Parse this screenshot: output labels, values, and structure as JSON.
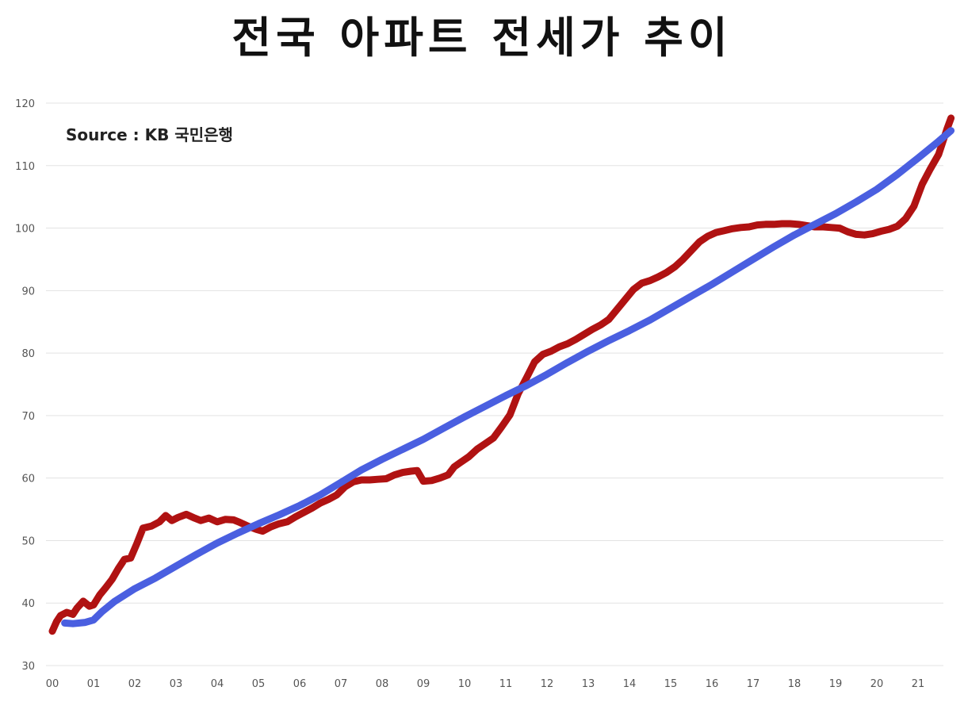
{
  "chart_data": {
    "type": "line",
    "title": "전국 아파트 전세가 추이",
    "annotation": "Source :  KB 국민은행",
    "xlabel": "",
    "ylabel": "",
    "ylim": [
      30,
      120
    ],
    "yticks": [
      30,
      40,
      50,
      60,
      70,
      80,
      90,
      100,
      110,
      120
    ],
    "xticks": [
      "00",
      "01",
      "02",
      "03",
      "04",
      "05",
      "06",
      "07",
      "08",
      "09",
      "10",
      "11",
      "12",
      "13",
      "14",
      "15",
      "16",
      "17",
      "18",
      "19",
      "20",
      "21"
    ],
    "xlim": [
      0,
      21.8
    ],
    "grid": true,
    "legend": "none",
    "series": [
      {
        "color": "#b01212",
        "x": [
          0.0,
          0.1,
          0.2,
          0.35,
          0.5,
          0.6,
          0.75,
          0.9,
          1.0,
          1.15,
          1.3,
          1.45,
          1.6,
          1.75,
          1.9,
          2.05,
          2.2,
          2.4,
          2.6,
          2.75,
          2.9,
          3.05,
          3.25,
          3.45,
          3.6,
          3.8,
          4.0,
          4.2,
          4.4,
          4.55,
          4.75,
          4.95,
          5.1,
          5.3,
          5.5,
          5.7,
          5.9,
          6.1,
          6.3,
          6.5,
          6.7,
          6.9,
          7.1,
          7.3,
          7.5,
          7.7,
          7.9,
          8.1,
          8.3,
          8.5,
          8.7,
          8.85,
          9.0,
          9.2,
          9.4,
          9.6,
          9.75,
          9.9,
          10.1,
          10.3,
          10.5,
          10.7,
          10.9,
          11.1,
          11.3,
          11.5,
          11.7,
          11.9,
          12.1,
          12.3,
          12.5,
          12.7,
          12.9,
          13.1,
          13.3,
          13.5,
          13.7,
          13.9,
          14.1,
          14.3,
          14.5,
          14.7,
          14.9,
          15.1,
          15.3,
          15.5,
          15.7,
          15.9,
          16.1,
          16.3,
          16.5,
          16.7,
          16.9,
          17.1,
          17.3,
          17.5,
          17.7,
          17.9,
          18.1,
          18.3,
          18.5,
          18.7,
          18.9,
          19.1,
          19.3,
          19.5,
          19.7,
          19.9,
          20.1,
          20.3,
          20.5,
          20.7,
          20.9,
          21.1,
          21.3,
          21.5,
          21.7,
          21.8
        ],
        "values": [
          35.5,
          37.0,
          38.0,
          38.5,
          38.2,
          39.2,
          40.3,
          39.5,
          39.7,
          41.3,
          42.5,
          43.8,
          45.5,
          47.0,
          47.2,
          49.5,
          52.0,
          52.3,
          53.0,
          54.0,
          53.2,
          53.7,
          54.2,
          53.6,
          53.2,
          53.6,
          53.0,
          53.4,
          53.3,
          52.9,
          52.3,
          51.8,
          51.5,
          52.2,
          52.7,
          53.0,
          53.8,
          54.5,
          55.2,
          56.0,
          56.6,
          57.3,
          58.6,
          59.4,
          59.7,
          59.7,
          59.8,
          59.9,
          60.5,
          60.9,
          61.1,
          61.2,
          59.5,
          59.6,
          60.0,
          60.5,
          61.8,
          62.5,
          63.4,
          64.6,
          65.5,
          66.4,
          68.2,
          70.1,
          73.5,
          76.0,
          78.6,
          79.8,
          80.3,
          81.0,
          81.5,
          82.2,
          83.0,
          83.8,
          84.5,
          85.4,
          87.0,
          88.6,
          90.2,
          91.2,
          91.6,
          92.2,
          92.9,
          93.8,
          95.0,
          96.4,
          97.8,
          98.7,
          99.3,
          99.6,
          99.9,
          100.1,
          100.2,
          100.5,
          100.6,
          100.6,
          100.7,
          100.7,
          100.6,
          100.4,
          100.2,
          100.2,
          100.1,
          100.0,
          99.4,
          99.0,
          98.9,
          99.1,
          99.5,
          99.8,
          100.3,
          101.5,
          103.5,
          107.0,
          109.5,
          111.8,
          115.8,
          117.6
        ]
      },
      {
        "color": "#4a5fe0",
        "x": [
          0.3,
          0.5,
          0.8,
          1.0,
          1.2,
          1.5,
          2.0,
          2.5,
          3.0,
          3.5,
          4.0,
          4.5,
          5.0,
          5.5,
          6.0,
          6.5,
          7.0,
          7.5,
          8.0,
          8.5,
          9.0,
          9.5,
          10.0,
          10.5,
          11.0,
          11.5,
          12.0,
          12.5,
          13.0,
          13.5,
          14.0,
          14.5,
          15.0,
          15.5,
          16.0,
          16.5,
          17.0,
          17.5,
          18.0,
          18.5,
          19.0,
          19.5,
          20.0,
          20.5,
          21.0,
          21.5,
          21.8
        ],
        "values": [
          36.8,
          36.7,
          36.9,
          37.3,
          38.6,
          40.2,
          42.3,
          44.0,
          45.9,
          47.8,
          49.6,
          51.2,
          52.7,
          54.1,
          55.6,
          57.3,
          59.3,
          61.3,
          63.0,
          64.6,
          66.2,
          68.0,
          69.8,
          71.5,
          73.2,
          74.8,
          76.6,
          78.5,
          80.3,
          82.0,
          83.6,
          85.3,
          87.2,
          89.1,
          91.0,
          93.0,
          95.0,
          97.0,
          98.9,
          100.6,
          102.3,
          104.2,
          106.2,
          108.6,
          111.2,
          113.9,
          115.6
        ]
      }
    ]
  }
}
